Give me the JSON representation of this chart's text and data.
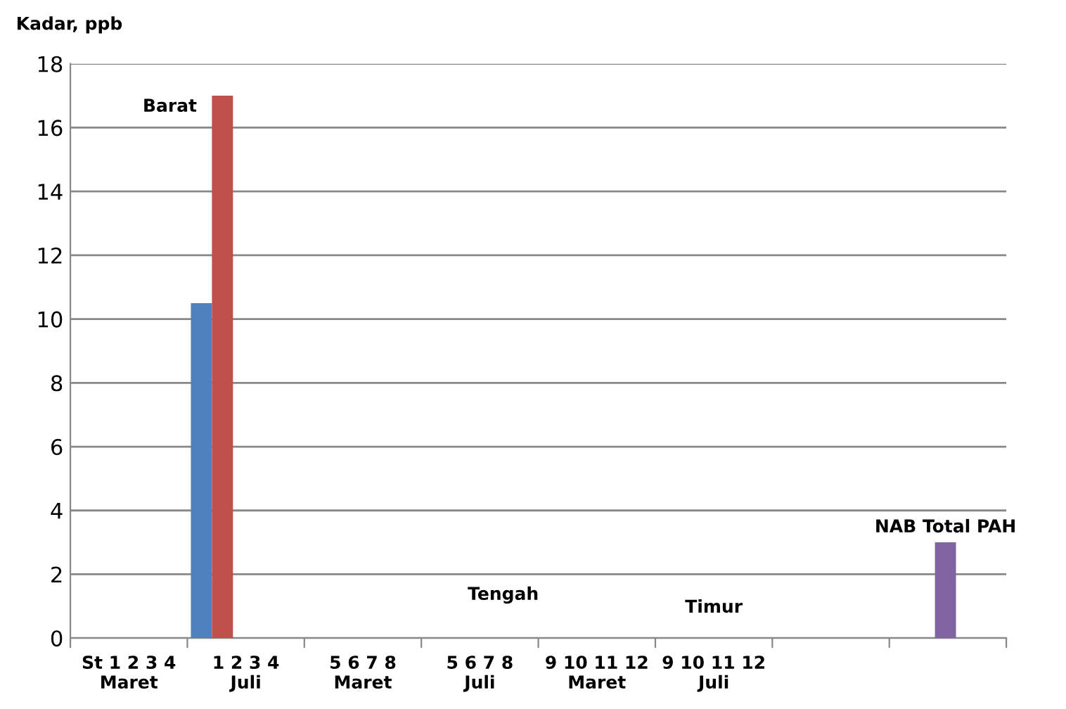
{
  "chart_data": {
    "type": "bar",
    "ylabel": "Kadar, ppb",
    "categories": [
      "St 1 2 3 4\nMaret",
      "1 2 3 4\nJuli",
      "5 6 7 8\nMaret",
      "5 6 7 8\nJuli",
      "9 10 11 12\nMaret",
      "9 10 11 12\nJuli",
      null,
      null
    ],
    "series": [
      {
        "color": "#4f81bd",
        "values": [
          null,
          10.5,
          null,
          null,
          null,
          null,
          null,
          null
        ]
      },
      {
        "color": "#c0504d",
        "values": [
          null,
          17,
          null,
          null,
          null,
          null,
          null,
          null
        ]
      },
      {
        "name": "NAB Total PAH",
        "color": "#8064a2",
        "values": [
          null,
          null,
          null,
          null,
          null,
          null,
          null,
          3
        ]
      }
    ],
    "annotations": [
      "Barat",
      "Tengah",
      "Timur"
    ],
    "ylim": [
      0,
      18
    ],
    "yticks": [
      0,
      2,
      4,
      6,
      8,
      10,
      12,
      14,
      16,
      18
    ],
    "grid": "y",
    "legend": false
  }
}
